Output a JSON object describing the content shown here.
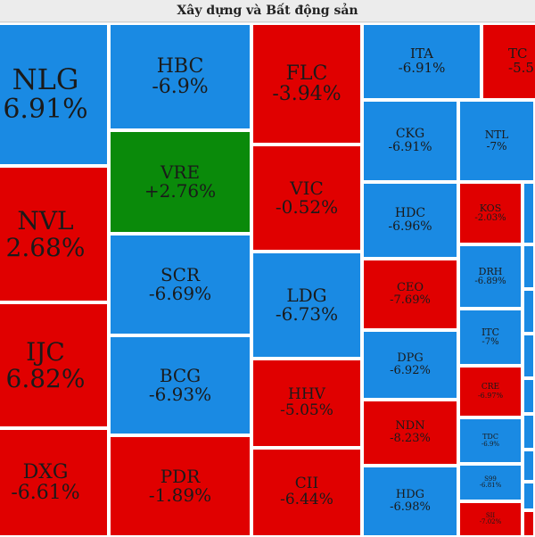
{
  "header": {
    "title": "Xây dựng và Bất động sản"
  },
  "colors": {
    "down_blue": "#1a8ae3",
    "down_red": "#e00000",
    "up_green": "#0a8a0a"
  },
  "tiles": {
    "nlg": {
      "ticker": "NLG",
      "change": "6.91%"
    },
    "nvl": {
      "ticker": "NVL",
      "change": "2.68%"
    },
    "ijc": {
      "ticker": "IJC",
      "change": "6.82%"
    },
    "dxg": {
      "ticker": "DXG",
      "change": "-6.61%"
    },
    "hbc": {
      "ticker": "HBC",
      "change": "-6.9%"
    },
    "vre": {
      "ticker": "VRE",
      "change": "+2.76%"
    },
    "scr": {
      "ticker": "SCR",
      "change": "-6.69%"
    },
    "bcg": {
      "ticker": "BCG",
      "change": "-6.93%"
    },
    "pdr": {
      "ticker": "PDR",
      "change": "-1.89%"
    },
    "flc": {
      "ticker": "FLC",
      "change": "-3.94%"
    },
    "vic": {
      "ticker": "VIC",
      "change": "-0.52%"
    },
    "ldg": {
      "ticker": "LDG",
      "change": "-6.73%"
    },
    "hhv": {
      "ticker": "HHV",
      "change": "-5.05%"
    },
    "cii": {
      "ticker": "CII",
      "change": "-6.44%"
    },
    "ita": {
      "ticker": "ITA",
      "change": "-6.91%"
    },
    "ckg": {
      "ticker": "CKG",
      "change": "-6.91%"
    },
    "hdc": {
      "ticker": "HDC",
      "change": "-6.96%"
    },
    "ceo": {
      "ticker": "CEO",
      "change": "-7.69%"
    },
    "dpg": {
      "ticker": "DPG",
      "change": "-6.92%"
    },
    "ndn": {
      "ticker": "NDN",
      "change": "-8.23%"
    },
    "hdg": {
      "ticker": "HDG",
      "change": "-6.98%"
    },
    "tcx": {
      "ticker": "TC",
      "change": "-5.5"
    },
    "ntl": {
      "ticker": "NTL",
      "change": "-7%"
    },
    "kos": {
      "ticker": "KOS",
      "change": "-2.03%"
    },
    "drh": {
      "ticker": "DRH",
      "change": "-6.89%"
    },
    "itc": {
      "ticker": "ITC",
      "change": "-7%"
    },
    "cre": {
      "ticker": "CRE",
      "change": "-6.97%"
    },
    "tdc": {
      "ticker": "TDC",
      "change": "-6.9%"
    },
    "s99": {
      "ticker": "S99",
      "change": "-6.81%"
    },
    "sii": {
      "ticker": "SII",
      "change": "-7.02%"
    }
  }
}
